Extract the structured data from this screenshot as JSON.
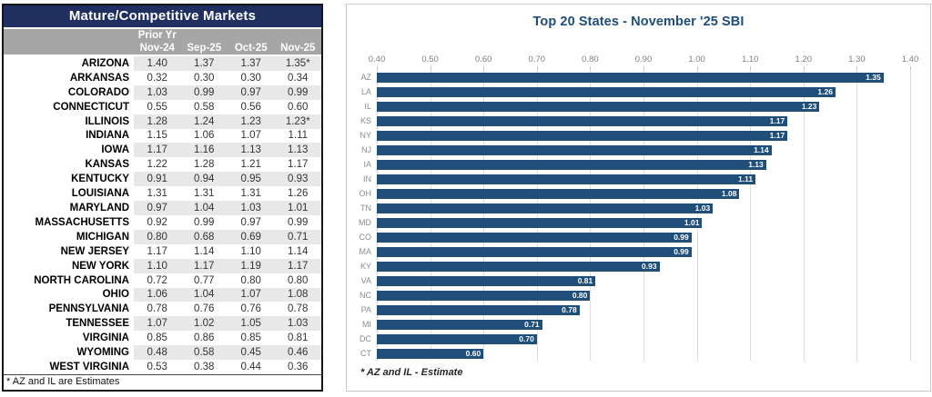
{
  "colors": {
    "table_title_bg": "#1f3060",
    "table_header_bg": "#a6a6a6",
    "row_stripe": "#e8e8e8",
    "bar_fill": "#1f4e79",
    "chart_title_text": "#1f4e79"
  },
  "table": {
    "title": "Mature/Competitive Markets",
    "header": {
      "group_label": "Prior Yr",
      "columns": [
        "Nov-24",
        "Sep-25",
        "Oct-25",
        "Nov-25"
      ]
    },
    "rows": [
      {
        "state": "ARIZONA",
        "values": [
          "1.40",
          "1.37",
          "1.37",
          "1.35*"
        ]
      },
      {
        "state": "ARKANSAS",
        "values": [
          "0.32",
          "0.30",
          "0.30",
          "0.34"
        ]
      },
      {
        "state": "COLORADO",
        "values": [
          "1.03",
          "0.99",
          "0.97",
          "0.99"
        ]
      },
      {
        "state": "CONNECTICUT",
        "values": [
          "0.55",
          "0.58",
          "0.56",
          "0.60"
        ]
      },
      {
        "state": "ILLINOIS",
        "values": [
          "1.28",
          "1.24",
          "1.23",
          "1.23*"
        ]
      },
      {
        "state": "INDIANA",
        "values": [
          "1.15",
          "1.06",
          "1.07",
          "1.11"
        ]
      },
      {
        "state": "IOWA",
        "values": [
          "1.17",
          "1.16",
          "1.13",
          "1.13"
        ]
      },
      {
        "state": "KANSAS",
        "values": [
          "1.22",
          "1.28",
          "1.21",
          "1.17"
        ]
      },
      {
        "state": "KENTUCKY",
        "values": [
          "0.91",
          "0.94",
          "0.95",
          "0.93"
        ]
      },
      {
        "state": "LOUISIANA",
        "values": [
          "1.31",
          "1.31",
          "1.31",
          "1.26"
        ]
      },
      {
        "state": "MARYLAND",
        "values": [
          "0.97",
          "1.04",
          "1.03",
          "1.01"
        ]
      },
      {
        "state": "MASSACHUSETTS",
        "values": [
          "0.92",
          "0.99",
          "0.97",
          "0.99"
        ]
      },
      {
        "state": "MICHIGAN",
        "values": [
          "0.80",
          "0.68",
          "0.69",
          "0.71"
        ]
      },
      {
        "state": "NEW JERSEY",
        "values": [
          "1.17",
          "1.14",
          "1.10",
          "1.14"
        ]
      },
      {
        "state": "NEW YORK",
        "values": [
          "1.10",
          "1.17",
          "1.19",
          "1.17"
        ]
      },
      {
        "state": "NORTH CAROLINA",
        "values": [
          "0.72",
          "0.77",
          "0.80",
          "0.80"
        ]
      },
      {
        "state": "OHIO",
        "values": [
          "1.06",
          "1.04",
          "1.07",
          "1.08"
        ]
      },
      {
        "state": "PENNSYLVANIA",
        "values": [
          "0.78",
          "0.76",
          "0.76",
          "0.78"
        ]
      },
      {
        "state": "TENNESSEE",
        "values": [
          "1.07",
          "1.02",
          "1.05",
          "1.03"
        ]
      },
      {
        "state": "VIRGINIA",
        "values": [
          "0.85",
          "0.86",
          "0.85",
          "0.81"
        ]
      },
      {
        "state": "WYOMING",
        "values": [
          "0.48",
          "0.58",
          "0.45",
          "0.46"
        ]
      },
      {
        "state": "WEST VIRGINIA",
        "values": [
          "0.53",
          "0.38",
          "0.44",
          "0.36"
        ]
      }
    ],
    "footnote": "* AZ and IL are Estimates"
  },
  "chart": {
    "title": "Top 20 States -  November '25 SBI",
    "footnote": "* AZ and IL - Estimate"
  },
  "chart_data": {
    "type": "bar",
    "orientation": "horizontal",
    "title": "Top 20 States -  November '25 SBI",
    "categories": [
      "AZ",
      "LA",
      "IL",
      "KS",
      "NY",
      "NJ",
      "IA",
      "IN",
      "OH",
      "TN",
      "MD",
      "CO",
      "MA",
      "KY",
      "VA",
      "NC",
      "PA",
      "MI",
      "DC",
      "CT"
    ],
    "values": [
      1.35,
      1.26,
      1.23,
      1.17,
      1.17,
      1.14,
      1.13,
      1.11,
      1.08,
      1.03,
      1.01,
      0.99,
      0.99,
      0.93,
      0.81,
      0.8,
      0.78,
      0.71,
      0.7,
      0.6
    ],
    "xlabel": "",
    "ylabel": "",
    "xlim": [
      0.4,
      1.4
    ],
    "tick_labels": [
      "0.40",
      "0.50",
      "0.60",
      "0.70",
      "0.80",
      "0.90",
      "1.00",
      "1.10",
      "1.20",
      "1.30",
      "1.40"
    ],
    "grid": true,
    "legend": false,
    "bar_color": "#1f4e79",
    "value_label_style": "inside-end white bold, 2 decimals",
    "axis_position": "top"
  }
}
